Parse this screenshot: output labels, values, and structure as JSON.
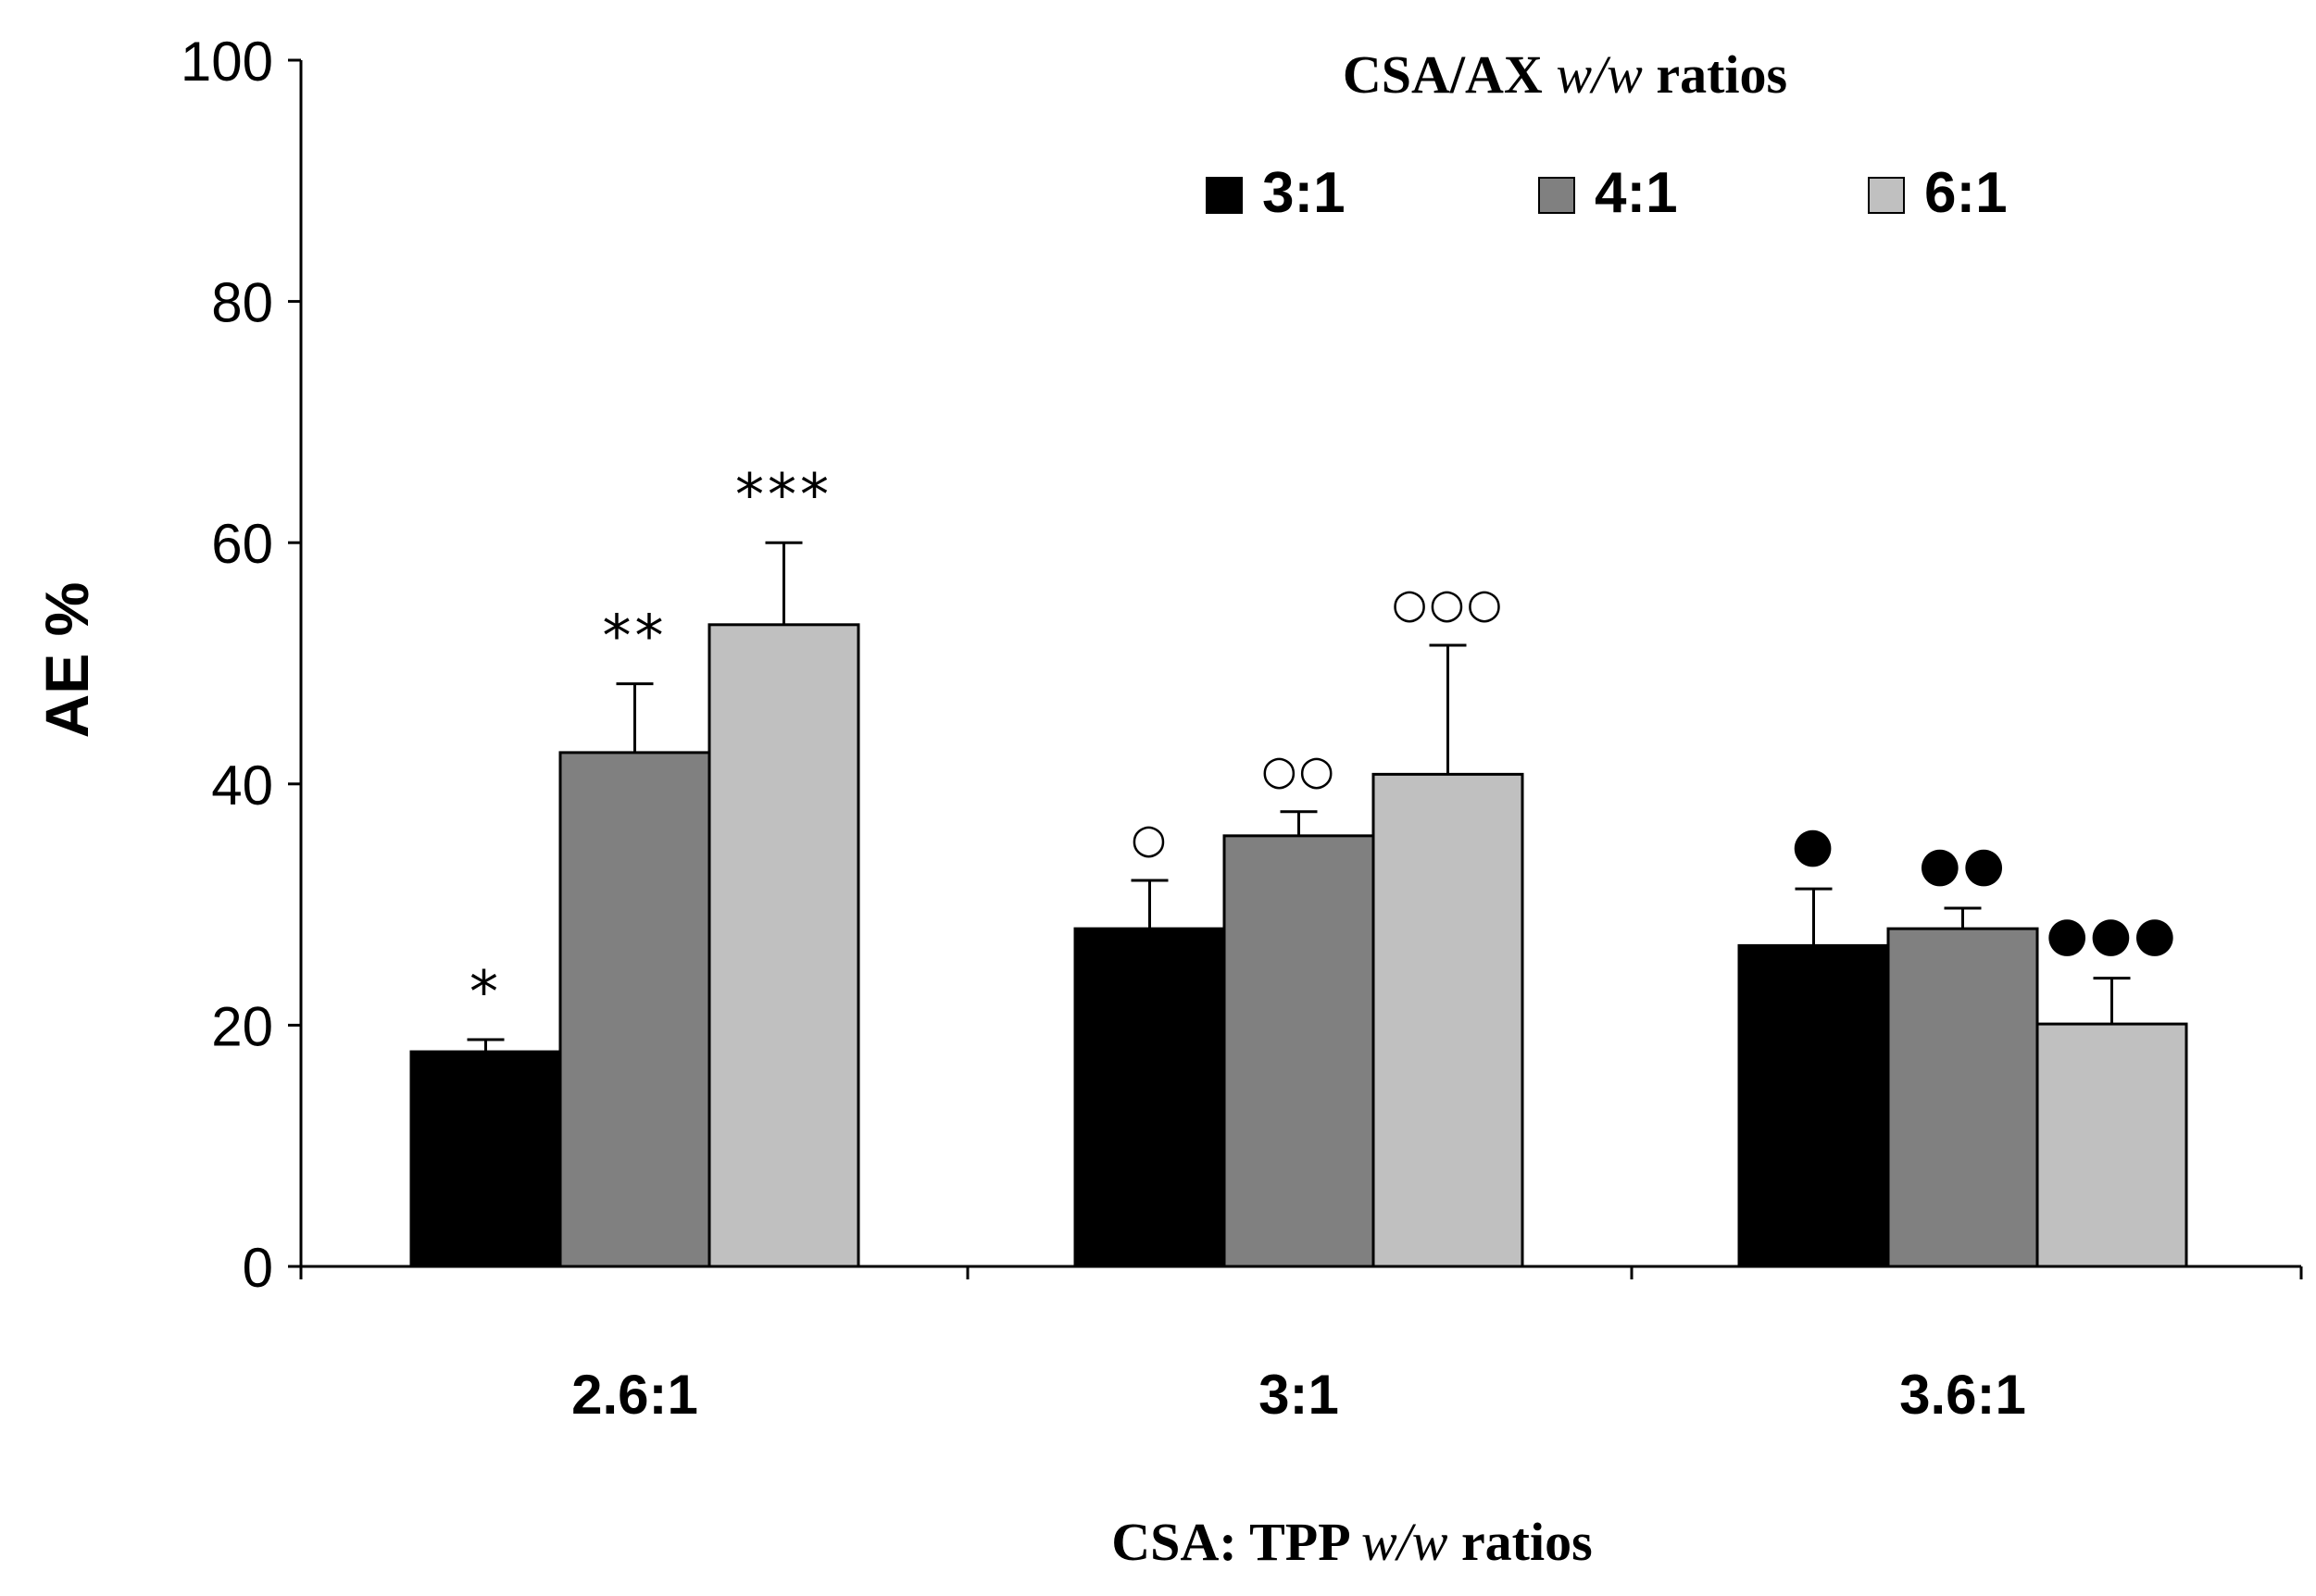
{
  "chart_data": {
    "type": "bar",
    "title": "",
    "xlabel_parts": [
      "CSA: TPP ",
      "w/w",
      " ratios"
    ],
    "ylabel": "AE %",
    "ylim": [
      0,
      100
    ],
    "yticks": [
      "0",
      "20",
      "40",
      "60",
      "80",
      "100"
    ],
    "categories": [
      "2.6:1",
      "3:1",
      "3.6:1"
    ],
    "legend": {
      "title_parts": [
        "CSA/AX ",
        "w/w",
        " ratios"
      ],
      "position": "top-right"
    },
    "series": [
      {
        "name": "3:1",
        "color": "#000000",
        "values": [
          17.8,
          28,
          26.6
        ],
        "errors": [
          1,
          4,
          4.7
        ]
      },
      {
        "name": "4:1",
        "color": "#808080",
        "values": [
          42.6,
          35.7,
          28
        ],
        "errors": [
          5.7,
          2,
          1.7
        ]
      },
      {
        "name": "6:1",
        "color": "#c0c0c0",
        "values": [
          53.2,
          40.8,
          20.1
        ],
        "errors": [
          6.8,
          10.7,
          3.8
        ]
      }
    ],
    "annotations": [
      [
        "*",
        "**",
        "***"
      ],
      [
        "○",
        "○○",
        "○○○"
      ],
      [
        "●",
        "●●",
        "●●●"
      ]
    ]
  }
}
